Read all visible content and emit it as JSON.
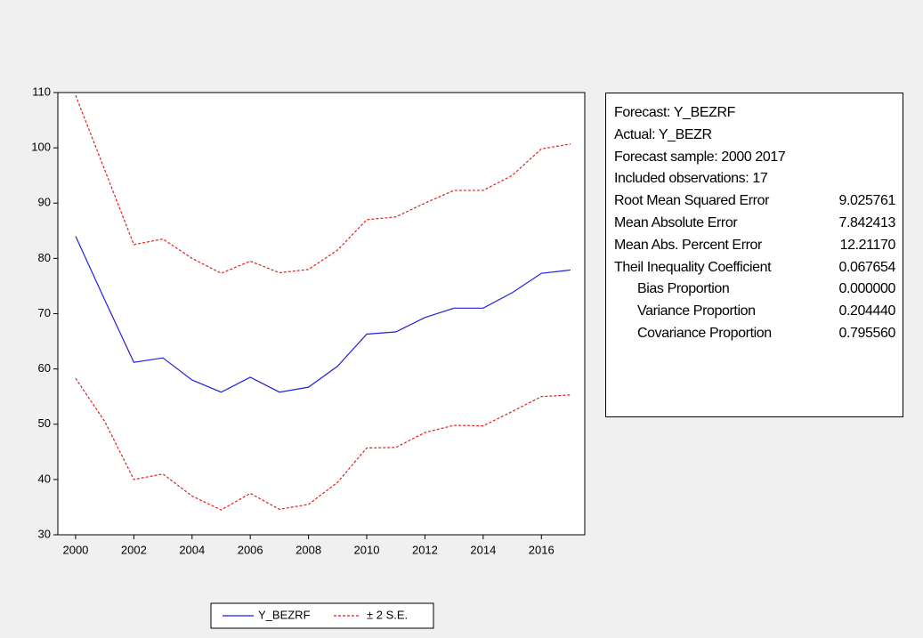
{
  "chart_data": {
    "type": "line",
    "x": [
      2000,
      2001,
      2002,
      2003,
      2004,
      2005,
      2006,
      2007,
      2008,
      2009,
      2010,
      2011,
      2012,
      2013,
      2014,
      2015,
      2016,
      2017
    ],
    "series": [
      {
        "name": "Y_BEZRF",
        "color": "#1f1fe0",
        "values": [
          84,
          72.5,
          61.2,
          62,
          58,
          55.8,
          58.5,
          55.8,
          56.7,
          60.5,
          66.3,
          66.7,
          69.3,
          71,
          71,
          73.8,
          77.3,
          77.9
        ]
      }
    ],
    "band": {
      "name": "± 2 S.E.",
      "color": "#e02020",
      "upper": [
        109.5,
        96,
        82.5,
        83.5,
        80,
        77.3,
        79.5,
        77.4,
        78,
        81.5,
        87,
        87.5,
        90,
        92.3,
        92.3,
        95,
        99.8,
        100.7
      ],
      "lower": [
        58.3,
        50.5,
        40,
        41,
        37,
        34.5,
        37.5,
        34.6,
        35.5,
        39.5,
        45.7,
        45.8,
        48.5,
        49.8,
        49.7,
        52.3,
        55,
        55.3
      ]
    },
    "xlim": [
      1999.39,
      2017.49
    ],
    "xticks": [
      2000,
      2002,
      2004,
      2006,
      2008,
      2010,
      2012,
      2014,
      2016
    ],
    "ylim": [
      30,
      110
    ],
    "yticks": [
      30,
      40,
      50,
      60,
      70,
      80,
      90,
      100,
      110
    ]
  },
  "stats": {
    "lines": [
      "Forecast: Y_BEZRF",
      "Actual: Y_BEZR",
      "Forecast sample: 2000 2017",
      "Included observations: 17"
    ],
    "rows": [
      {
        "label": "Root Mean Squared Error",
        "value": "9.025761"
      },
      {
        "label": "Mean Absolute Error",
        "value": "7.842413"
      },
      {
        "label": "Mean Abs. Percent Error",
        "value": "12.21170"
      },
      {
        "label": "Theil Inequality Coefficient",
        "value": "0.067654",
        "sub": [
          {
            "label": "Bias Proportion",
            "value": "0.000000"
          },
          {
            "label": "Variance Proportion",
            "value": "0.204440"
          },
          {
            "label": "Covariance Proportion",
            "value": "0.795560"
          }
        ]
      }
    ]
  }
}
